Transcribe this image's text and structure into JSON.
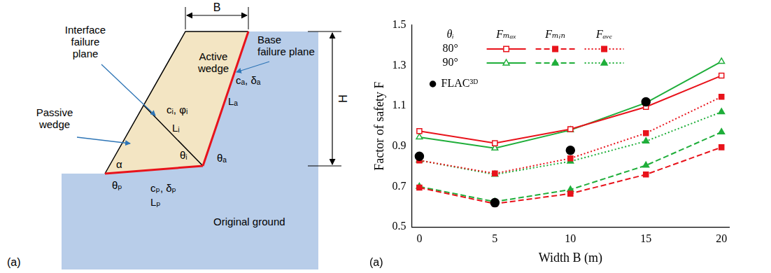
{
  "diagram": {
    "panel_label": "(a)",
    "width": "B",
    "height": "H",
    "active_wedge": [
      "Active",
      "wedge"
    ],
    "passive_wedge": [
      "Passive",
      "wedge"
    ],
    "interface_plane": [
      "Interface",
      "failure",
      "plane"
    ],
    "base_plane": [
      "Base",
      "failure plane"
    ],
    "interface_strength": "cᵢ, φᵢ",
    "interface_length": "Lᵢ",
    "interface_angle": "θᵢ",
    "base_strength": "cₐ, δₐ",
    "base_length": "Lₐ",
    "base_angle": "θₐ",
    "slope_angle": "α",
    "passive_angle": "θₚ",
    "passive_strength": "cₚ, δₚ",
    "passive_length": "Lₚ",
    "ground": "Original ground"
  },
  "chart_data": {
    "type": "line",
    "panel_label": "(a)",
    "x_label": "Width B (m)",
    "y_label": "Factor of safety F",
    "xlim": [
      -0.5,
      20.5
    ],
    "xticks": [
      0,
      5,
      10,
      15,
      20
    ],
    "ylim": [
      0.5,
      1.5
    ],
    "yticks": [
      0.5,
      0.7,
      0.9,
      1.1,
      1.3,
      1.5
    ],
    "grid": false,
    "legend": "upper left",
    "legend_row_title": "θᵢ",
    "legend_columns": [
      "Fₘₐₓ",
      "Fₘᵢₙ",
      "Fₐᵥₑ"
    ],
    "series": [
      {
        "group": "80°",
        "stat": "Fₘₐₓ",
        "color": "#e8131b",
        "line_style": "solid",
        "marker": "square_open",
        "x": [
          0,
          5,
          10,
          15,
          20
        ],
        "values": [
          0.975,
          0.915,
          0.985,
          1.095,
          1.25
        ]
      },
      {
        "group": "80°",
        "stat": "Fₘᵢₙ",
        "color": "#e8131b",
        "line_style": "dashed",
        "marker": "square",
        "x": [
          0,
          5,
          10,
          15,
          20
        ],
        "values": [
          0.695,
          0.615,
          0.665,
          0.76,
          0.895
        ]
      },
      {
        "group": "80°",
        "stat": "Fₐᵥₑ",
        "color": "#e8131b",
        "line_style": "dotted",
        "marker": "square",
        "x": [
          0,
          5,
          10,
          15,
          20
        ],
        "values": [
          0.83,
          0.765,
          0.84,
          0.965,
          1.145
        ]
      },
      {
        "group": "90°",
        "stat": "Fₘₐₓ",
        "color": "#1fae3a",
        "line_style": "solid",
        "marker": "triangle_open",
        "x": [
          0,
          5,
          10,
          15,
          20
        ],
        "values": [
          0.945,
          0.89,
          0.98,
          1.115,
          1.32
        ]
      },
      {
        "group": "90°",
        "stat": "Fₘᵢₙ",
        "color": "#1fae3a",
        "line_style": "dashed",
        "marker": "triangle",
        "x": [
          0,
          5,
          10,
          15,
          20
        ],
        "values": [
          0.7,
          0.625,
          0.685,
          0.805,
          0.97
        ]
      },
      {
        "group": "90°",
        "stat": "Fₐᵥₑ",
        "color": "#1fae3a",
        "line_style": "dotted",
        "marker": "triangle",
        "x": [
          0,
          5,
          10,
          15,
          20
        ],
        "values": [
          0.83,
          0.76,
          0.825,
          0.925,
          1.07
        ]
      },
      {
        "name": "FLAC³ᴰ",
        "color": "#000000",
        "type": "scatter",
        "marker": "circle",
        "x": [
          0,
          5,
          10,
          15
        ],
        "values": [
          0.85,
          0.62,
          0.88,
          1.12
        ]
      }
    ]
  }
}
